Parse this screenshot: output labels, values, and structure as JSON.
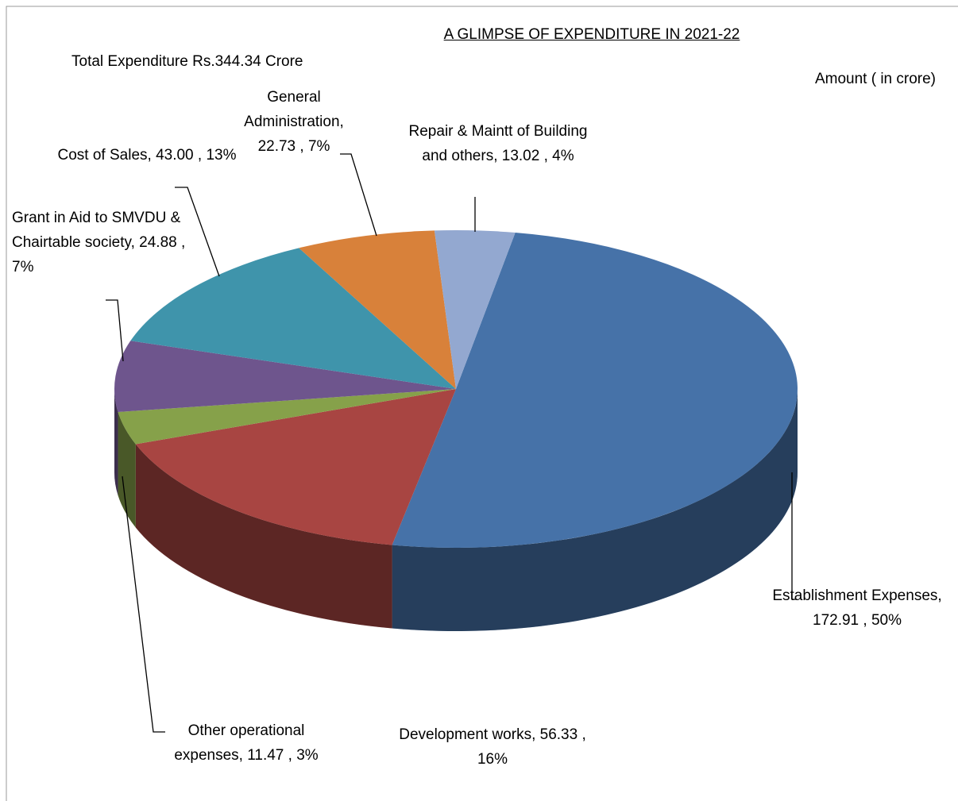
{
  "chart_data": {
    "type": "pie",
    "title": "A GLIMPSE OF EXPENDITURE IN  2021-22",
    "subtitle": "Total Expenditure Rs.344.34 Crore",
    "unit_label": "Amount (  in  crore)",
    "values": [
      172.91,
      56.33,
      11.47,
      24.88,
      43.0,
      22.73,
      13.02
    ],
    "value_labels": [
      "Establishment Expenses,  172.91 , 50%",
      "Development works, 56.33 , 16%",
      "Other operational expenses,  11.47 , 3%",
      "Grant in Aid to SMVDU & Chairtable society, 24.88 , 7%",
      "Cost of Sales,  43.00 , 13%",
      "General Administration, 22.73 , 7%",
      "Repair & Maintt of Building and others, 13.02 , 4%"
    ],
    "colors": [
      "#4672a8",
      "#a84542",
      "#86a14a",
      "#6e558d",
      "#3f94ab",
      "#d8813a",
      "#93a8d0"
    ]
  }
}
